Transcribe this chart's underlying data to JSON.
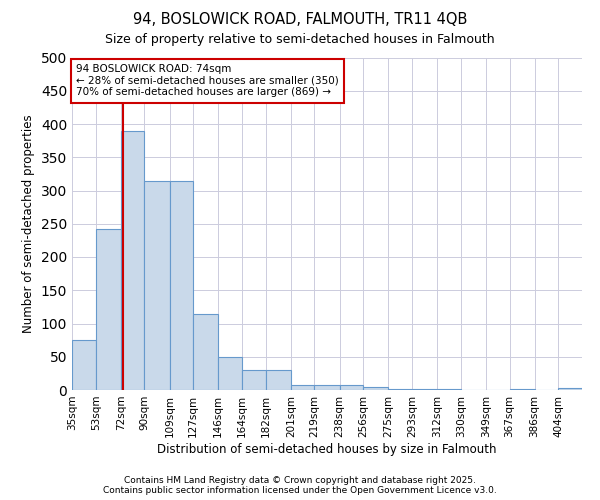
{
  "title1": "94, BOSLOWICK ROAD, FALMOUTH, TR11 4QB",
  "title2": "Size of property relative to semi-detached houses in Falmouth",
  "xlabel": "Distribution of semi-detached houses by size in Falmouth",
  "ylabel": "Number of semi-detached properties",
  "bins": [
    "35sqm",
    "53sqm",
    "72sqm",
    "90sqm",
    "109sqm",
    "127sqm",
    "146sqm",
    "164sqm",
    "182sqm",
    "201sqm",
    "219sqm",
    "238sqm",
    "256sqm",
    "275sqm",
    "293sqm",
    "312sqm",
    "330sqm",
    "349sqm",
    "367sqm",
    "386sqm",
    "404sqm"
  ],
  "bin_edges": [
    35,
    53,
    72,
    90,
    109,
    127,
    146,
    164,
    182,
    201,
    219,
    238,
    256,
    275,
    293,
    312,
    330,
    349,
    367,
    386,
    404,
    422
  ],
  "values": [
    75,
    242,
    390,
    315,
    315,
    115,
    50,
    30,
    30,
    7,
    7,
    7,
    5,
    1,
    1,
    1,
    0,
    0,
    2,
    0,
    3
  ],
  "bar_color": "#c9d9ea",
  "bar_edge_color": "#6699cc",
  "property_size": 74,
  "red_line_color": "#cc0000",
  "annotation_text": "94 BOSLOWICK ROAD: 74sqm\n← 28% of semi-detached houses are smaller (350)\n70% of semi-detached houses are larger (869) →",
  "annotation_box_color": "#ffffff",
  "annotation_box_edge": "#cc0000",
  "ylim": [
    0,
    500
  ],
  "yticks": [
    0,
    50,
    100,
    150,
    200,
    250,
    300,
    350,
    400,
    450,
    500
  ],
  "footer1": "Contains HM Land Registry data © Crown copyright and database right 2025.",
  "footer2": "Contains public sector information licensed under the Open Government Licence v3.0.",
  "background_color": "#ffffff",
  "grid_color": "#ccccdd"
}
